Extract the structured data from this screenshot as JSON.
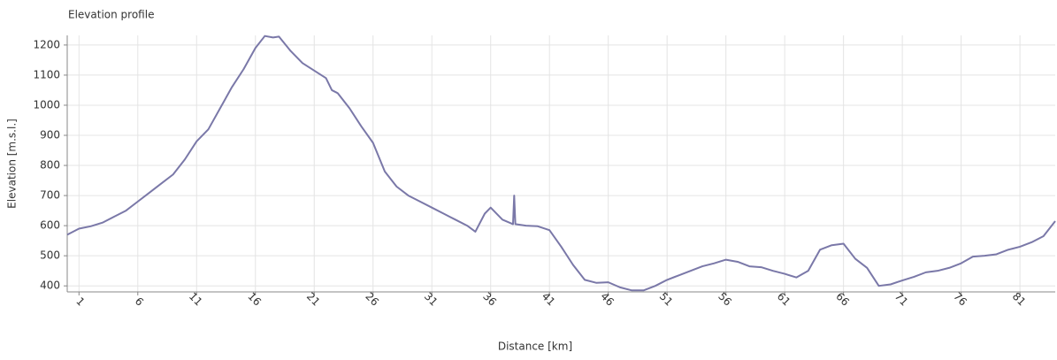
{
  "chart_data": {
    "type": "line",
    "title": "Elevation profile",
    "x_label": "Distance [km]",
    "y_label": "Elevation [m.s.l.]",
    "x": [
      0,
      1,
      2,
      3,
      4,
      5,
      6,
      7,
      8,
      9,
      10,
      11,
      12,
      13,
      14,
      15,
      16,
      16.8,
      17.5,
      18,
      19,
      20,
      21,
      22,
      22.5,
      23,
      24,
      25,
      26,
      27,
      28,
      29,
      30,
      31,
      32,
      33,
      34,
      34.7,
      35.5,
      36,
      37,
      37.9,
      38,
      38.1,
      39,
      40,
      41,
      42,
      43,
      44,
      45,
      46,
      47,
      48,
      49,
      50,
      51,
      52,
      53,
      54,
      55,
      56,
      57,
      58,
      59,
      60,
      61,
      62,
      63,
      64,
      65,
      66,
      67,
      68,
      69,
      70,
      71,
      72,
      73,
      74,
      75,
      76,
      77,
      78,
      79,
      80,
      81,
      82,
      83,
      84
    ],
    "series": [
      {
        "name": "Elevation",
        "color": "#7a78a8",
        "values": [
          570,
          590,
          598,
          610,
          630,
          650,
          680,
          710,
          740,
          770,
          820,
          880,
          920,
          990,
          1060,
          1120,
          1190,
          1230,
          1225,
          1228,
          1180,
          1140,
          1115,
          1090,
          1050,
          1040,
          990,
          930,
          875,
          780,
          730,
          700,
          680,
          660,
          640,
          620,
          600,
          580,
          640,
          660,
          620,
          605,
          700,
          605,
          600,
          598,
          585,
          530,
          470,
          420,
          410,
          412,
          395,
          385,
          385,
          400,
          420,
          435,
          450,
          465,
          475,
          487,
          480,
          465,
          462,
          450,
          440,
          428,
          450,
          520,
          535,
          540,
          490,
          460,
          400,
          405,
          418,
          430,
          445,
          450,
          460,
          475,
          497,
          500,
          505,
          520,
          530,
          545,
          565,
          615
        ]
      }
    ],
    "xlim": [
      0,
      84
    ],
    "ylim": [
      380,
      1232
    ],
    "xticks": [
      1,
      6,
      11,
      16,
      21,
      26,
      31,
      36,
      41,
      46,
      51,
      56,
      61,
      66,
      71,
      76,
      81
    ],
    "yticks": [
      400,
      500,
      600,
      700,
      800,
      900,
      1000,
      1100,
      1200
    ],
    "grid": true
  }
}
